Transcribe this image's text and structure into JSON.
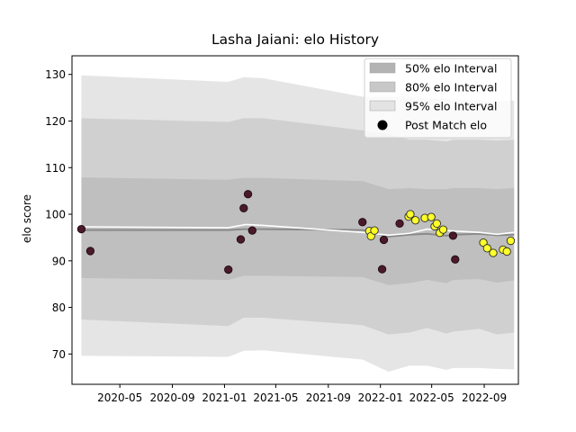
{
  "chart_data": {
    "type": "scatter",
    "title": "Lasha Jaiani: elo History",
    "xlabel": "",
    "ylabel": "elo score",
    "xlim": [
      "2020-01-10",
      "2022-11-20"
    ],
    "ylim": [
      63.5,
      134
    ],
    "x_ticks": [
      "2020-05",
      "2020-09",
      "2021-01",
      "2021-05",
      "2021-09",
      "2022-01",
      "2022-05",
      "2022-09"
    ],
    "y_ticks": [
      70,
      80,
      90,
      100,
      110,
      120,
      130
    ],
    "grid": false,
    "legend_position": "top-right",
    "legend": [
      {
        "label": "50% elo Interval",
        "kind": "band",
        "color": "#b3b3b3"
      },
      {
        "label": "80% elo Interval",
        "kind": "band",
        "color": "#c8c8c8"
      },
      {
        "label": "95% elo Interval",
        "kind": "band",
        "color": "#e3e3e3"
      },
      {
        "label": "Post Match elo",
        "kind": "marker",
        "color": "#000000"
      }
    ],
    "bands": {
      "dates": [
        "2020-02-01",
        "2021-01-10",
        "2021-02-15",
        "2021-04-01",
        "2021-11-20",
        "2022-01-20",
        "2022-03-10",
        "2022-04-20",
        "2022-06-05",
        "2022-06-20",
        "2022-08-20",
        "2022-10-01",
        "2022-11-10"
      ],
      "upper95": [
        129.8,
        128.4,
        129.4,
        129.2,
        125.2,
        125.2,
        125.2,
        124.8,
        124.8,
        124.6,
        124.4,
        124.2,
        124.4
      ],
      "lower95": [
        69.6,
        69.4,
        70.7,
        70.8,
        68.8,
        66.2,
        67.5,
        67.5,
        66.6,
        67.0,
        67.0,
        66.8,
        66.7
      ],
      "upper80": [
        120.6,
        119.8,
        120.6,
        120.6,
        118.0,
        117.2,
        116.0,
        116.0,
        115.6,
        116.0,
        116.0,
        115.8,
        116.0
      ],
      "lower80": [
        77.4,
        76.0,
        77.8,
        77.8,
        76.2,
        74.2,
        74.6,
        75.6,
        74.4,
        74.8,
        75.4,
        74.2,
        74.6
      ],
      "upper50": [
        107.9,
        107.4,
        107.8,
        107.8,
        107.1,
        105.4,
        105.6,
        105.4,
        105.4,
        105.6,
        105.6,
        105.4,
        105.6
      ],
      "lower50": [
        86.3,
        85.9,
        86.8,
        86.8,
        86.5,
        84.8,
        85.2,
        85.9,
        85.2,
        85.9,
        86.1,
        85.3,
        85.8
      ],
      "center": [
        96.6,
        96.6,
        96.8,
        96.8,
        96.6,
        95.2,
        95.6,
        95.8,
        95.4,
        95.6,
        95.8,
        95.5,
        95.6
      ]
    },
    "trend_line": {
      "color": "#ffffff",
      "x": [
        "2020-02-01",
        "2021-01-10",
        "2021-02-20",
        "2021-04-01",
        "2021-11-20",
        "2022-01-20",
        "2022-03-10",
        "2022-04-20",
        "2022-06-20",
        "2022-08-20",
        "2022-10-01",
        "2022-11-10"
      ],
      "y": [
        97.3,
        97.1,
        97.8,
        97.6,
        96.1,
        95.5,
        95.9,
        96.8,
        96.4,
        96.1,
        95.7,
        96.1
      ]
    },
    "series": [
      {
        "style": "dark",
        "fill": "#4a1a2a",
        "stroke": "#1e0a12",
        "x": [
          "2020-02-01",
          "2020-02-22",
          "2021-01-10",
          "2021-02-08",
          "2021-02-15",
          "2021-02-25",
          "2021-03-07",
          "2021-11-20",
          "2022-01-05",
          "2022-01-09",
          "2022-02-15",
          "2022-06-20",
          "2022-06-25"
        ],
        "y": [
          96.8,
          92.1,
          88.1,
          94.6,
          101.3,
          104.3,
          96.5,
          98.3,
          88.2,
          94.5,
          98.0,
          95.4,
          90.3
        ]
      },
      {
        "style": "highlight",
        "fill": "#ffff2a",
        "stroke": "#2a2a2a",
        "x": [
          "2021-12-06",
          "2021-12-10",
          "2021-12-18",
          "2022-03-08",
          "2022-03-12",
          "2022-03-24",
          "2022-04-15",
          "2022-04-30",
          "2022-05-08",
          "2022-05-13",
          "2022-05-20",
          "2022-05-28",
          "2022-08-30",
          "2022-09-08",
          "2022-09-22",
          "2022-10-15",
          "2022-10-24",
          "2022-11-02"
        ],
        "y": [
          96.4,
          95.3,
          96.5,
          99.5,
          100.0,
          98.7,
          99.2,
          99.4,
          97.4,
          98.0,
          96.0,
          96.7,
          93.9,
          92.7,
          91.7,
          92.4,
          92.0,
          94.3
        ]
      }
    ]
  }
}
